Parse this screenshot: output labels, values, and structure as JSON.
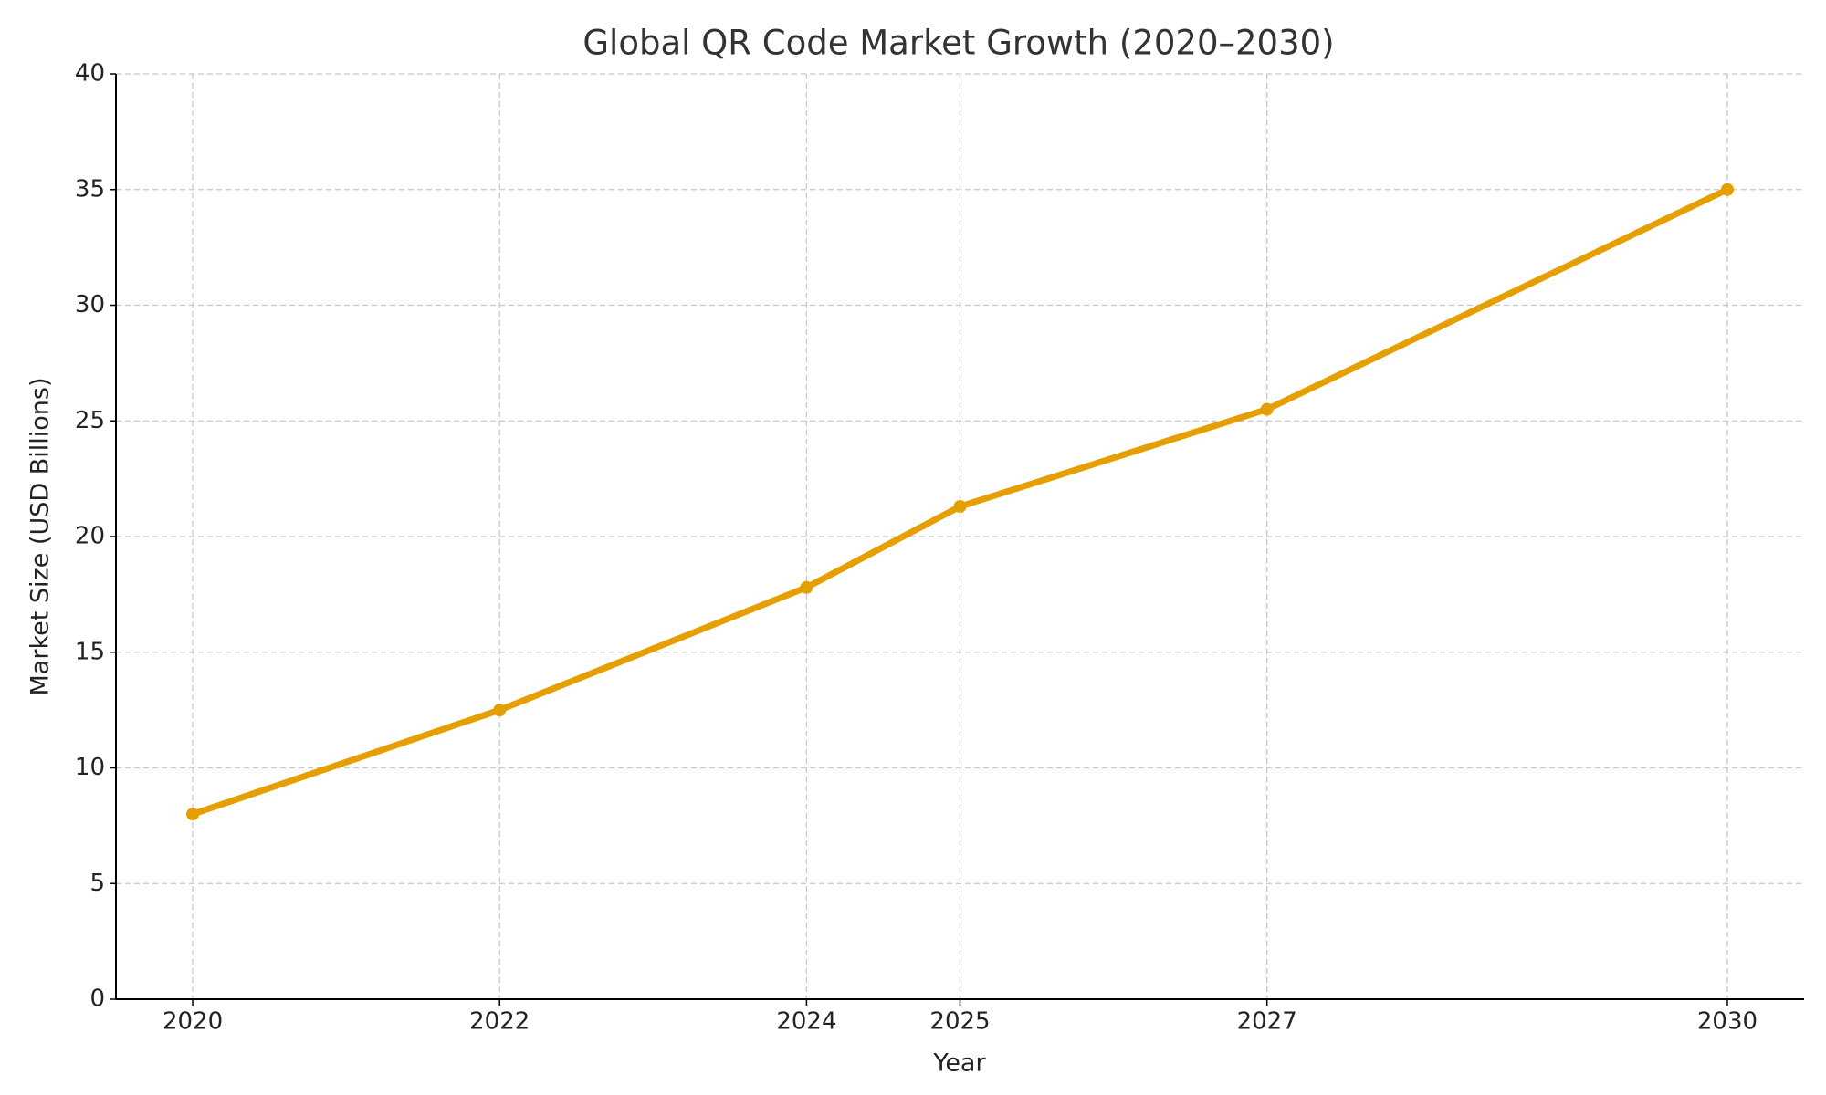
{
  "chart_data": {
    "type": "line",
    "title": "Global QR Code Market Growth (2020–2030)",
    "xlabel": "Year",
    "ylabel": "Market Size (USD Billions)",
    "x": [
      2020,
      2022,
      2024,
      2025,
      2027,
      2030
    ],
    "values": [
      8,
      12.5,
      17.8,
      21.3,
      25.5,
      35
    ],
    "color": "#e69f00",
    "xlim": [
      2019.5,
      2030.5
    ],
    "xticks": [
      2020,
      2022,
      2024,
      2025,
      2027,
      2030
    ],
    "ylim": [
      0,
      40
    ],
    "yticks": [
      0,
      5,
      10,
      15,
      20,
      25,
      30,
      35,
      40
    ],
    "grid": true
  }
}
